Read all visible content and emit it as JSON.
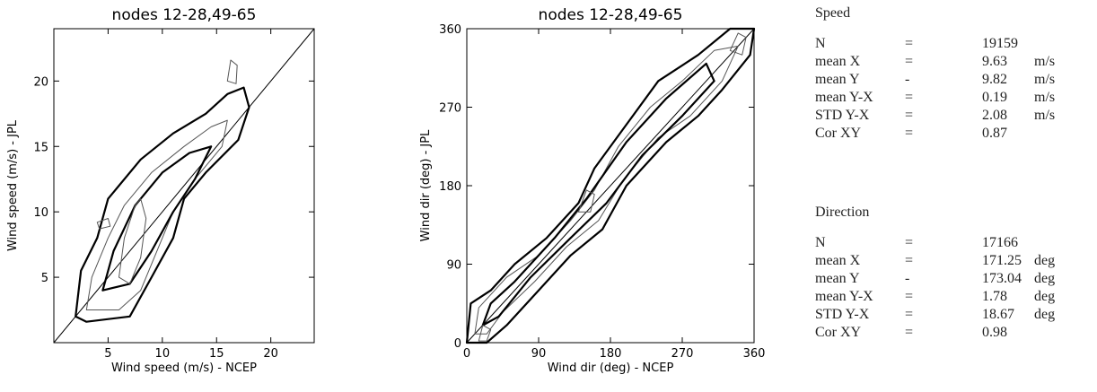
{
  "chart_data": [
    {
      "type": "contour",
      "title": "nodes 12-28,49-65",
      "xlabel": "Wind speed (m/s)  - NCEP",
      "ylabel": "Wind speed (m/s)  - JPL",
      "xlim": [
        0,
        24
      ],
      "ylim": [
        0,
        24
      ],
      "xticks": [
        5,
        10,
        15,
        20
      ],
      "yticks": [
        5,
        10,
        15,
        20
      ],
      "diagonal": "y = x",
      "contours": [
        {
          "level": 1,
          "points": [
            [
              2,
              2
            ],
            [
              2.5,
              5.5
            ],
            [
              4,
              8
            ],
            [
              5,
              11
            ],
            [
              8,
              14
            ],
            [
              11,
              16
            ],
            [
              14,
              17.5
            ],
            [
              16,
              19
            ],
            [
              17.5,
              19.5
            ],
            [
              18,
              18
            ],
            [
              17,
              15.5
            ],
            [
              14,
              13
            ],
            [
              12,
              11
            ],
            [
              11,
              8
            ],
            [
              9,
              5
            ],
            [
              7,
              2
            ],
            [
              3,
              1.6
            ]
          ]
        },
        {
          "level": 2,
          "points": [
            [
              3,
              2.5
            ],
            [
              3.5,
              5
            ],
            [
              5,
              8
            ],
            [
              6.5,
              10.5
            ],
            [
              9,
              13
            ],
            [
              12,
              15
            ],
            [
              14.5,
              16.5
            ],
            [
              16,
              17
            ],
            [
              15.5,
              15
            ],
            [
              13,
              12.5
            ],
            [
              11,
              10
            ],
            [
              9.5,
              7
            ],
            [
              8,
              4
            ],
            [
              6,
              2.5
            ]
          ]
        },
        {
          "level": 3,
          "points": [
            [
              4.5,
              4
            ],
            [
              5.5,
              7
            ],
            [
              7.5,
              10.5
            ],
            [
              10,
              13
            ],
            [
              12.5,
              14.5
            ],
            [
              14.5,
              15
            ],
            [
              13,
              12.5
            ],
            [
              11,
              10
            ],
            [
              9,
              7
            ],
            [
              7,
              4.5
            ]
          ]
        },
        {
          "level": 4,
          "points": [
            [
              6,
              5
            ],
            [
              6.5,
              8
            ],
            [
              7.5,
              10.5
            ],
            [
              8,
              11
            ],
            [
              8.5,
              9.5
            ],
            [
              8,
              6.5
            ],
            [
              7,
              4.5
            ]
          ]
        },
        {
          "level": 5,
          "points": [
            [
              16,
              20
            ],
            [
              16.3,
              21.6
            ],
            [
              16.9,
              21.2
            ],
            [
              16.8,
              19.8
            ]
          ]
        },
        {
          "level": 6,
          "points": [
            [
              4,
              9.2
            ],
            [
              5,
              9.5
            ],
            [
              5.2,
              8.9
            ],
            [
              4.2,
              8.7
            ]
          ]
        }
      ]
    },
    {
      "type": "contour",
      "title": "nodes 12-28,49-65",
      "xlabel": "Wind dir (deg)  - NCEP",
      "ylabel": "Wind dir (deg)  - JPL",
      "xlim": [
        0,
        360
      ],
      "ylim": [
        0,
        360
      ],
      "xticks": [
        0,
        90,
        180,
        270,
        360
      ],
      "yticks": [
        0,
        90,
        180,
        270,
        360
      ],
      "diagonal": "y = x",
      "contours": [
        {
          "level": 1,
          "points": [
            [
              0,
              0
            ],
            [
              5,
              45
            ],
            [
              30,
              60
            ],
            [
              60,
              90
            ],
            [
              100,
              120
            ],
            [
              140,
              160
            ],
            [
              160,
              200
            ],
            [
              200,
              250
            ],
            [
              240,
              300
            ],
            [
              290,
              330
            ],
            [
              330,
              360
            ],
            [
              360,
              360
            ],
            [
              355,
              330
            ],
            [
              320,
              290
            ],
            [
              290,
              260
            ],
            [
              250,
              230
            ],
            [
              200,
              180
            ],
            [
              170,
              130
            ],
            [
              130,
              100
            ],
            [
              90,
              60
            ],
            [
              50,
              20
            ],
            [
              25,
              0
            ]
          ]
        },
        {
          "level": 2,
          "points": [
            [
              10,
              10
            ],
            [
              15,
              40
            ],
            [
              50,
              75
            ],
            [
              90,
              100
            ],
            [
              130,
              140
            ],
            [
              160,
              175
            ],
            [
              190,
              225
            ],
            [
              230,
              270
            ],
            [
              270,
              300
            ],
            [
              310,
              335
            ],
            [
              340,
              340
            ],
            [
              320,
              300
            ],
            [
              280,
              260
            ],
            [
              240,
              235
            ],
            [
              195,
              185
            ],
            [
              165,
              140
            ],
            [
              125,
              110
            ],
            [
              85,
              70
            ],
            [
              45,
              35
            ],
            [
              25,
              10
            ]
          ]
        },
        {
          "level": 3,
          "points": [
            [
              20,
              20
            ],
            [
              30,
              45
            ],
            [
              60,
              70
            ],
            [
              110,
              120
            ],
            [
              150,
              165
            ],
            [
              200,
              230
            ],
            [
              250,
              280
            ],
            [
              300,
              320
            ],
            [
              310,
              300
            ],
            [
              270,
              260
            ],
            [
              220,
              215
            ],
            [
              175,
              160
            ],
            [
              130,
              120
            ],
            [
              80,
              75
            ],
            [
              40,
              30
            ]
          ]
        },
        {
          "level": 4,
          "points": [
            [
              140,
              150
            ],
            [
              150,
              175
            ],
            [
              160,
              170
            ],
            [
              155,
              150
            ]
          ]
        },
        {
          "level": 5,
          "points": [
            [
              330,
              335
            ],
            [
              340,
              355
            ],
            [
              350,
              350
            ],
            [
              345,
              330
            ]
          ]
        },
        {
          "level": 6,
          "points": [
            [
              15,
              2
            ],
            [
              20,
              20
            ],
            [
              30,
              15
            ],
            [
              25,
              2
            ]
          ]
        }
      ]
    }
  ],
  "stats": {
    "speed": {
      "title": "Speed",
      "rows": [
        {
          "label": "N",
          "op": "=",
          "value": "19159",
          "unit": ""
        },
        {
          "label": "mean X",
          "op": "=",
          "value": "9.63",
          "unit": "m/s"
        },
        {
          "label": "mean Y",
          "op": "-",
          "value": "9.82",
          "unit": "m/s"
        },
        {
          "label": "mean Y-X",
          "op": "=",
          "value": "0.19",
          "unit": "m/s"
        },
        {
          "label": "STD Y-X",
          "op": "=",
          "value": "2.08",
          "unit": "m/s"
        },
        {
          "label": "Cor XY",
          "op": "=",
          "value": "0.87",
          "unit": ""
        }
      ]
    },
    "direction": {
      "title": "Direction",
      "rows": [
        {
          "label": "N",
          "op": "=",
          "value": "17166",
          "unit": ""
        },
        {
          "label": "mean X",
          "op": "=",
          "value": "171.25",
          "unit": "deg"
        },
        {
          "label": "mean Y",
          "op": "-",
          "value": "173.04",
          "unit": "deg"
        },
        {
          "label": "mean Y-X",
          "op": "=",
          "value": "1.78",
          "unit": "deg"
        },
        {
          "label": "STD Y-X",
          "op": "=",
          "value": "18.67",
          "unit": "deg"
        },
        {
          "label": "Cor XY",
          "op": "=",
          "value": "0.98",
          "unit": ""
        }
      ]
    }
  }
}
